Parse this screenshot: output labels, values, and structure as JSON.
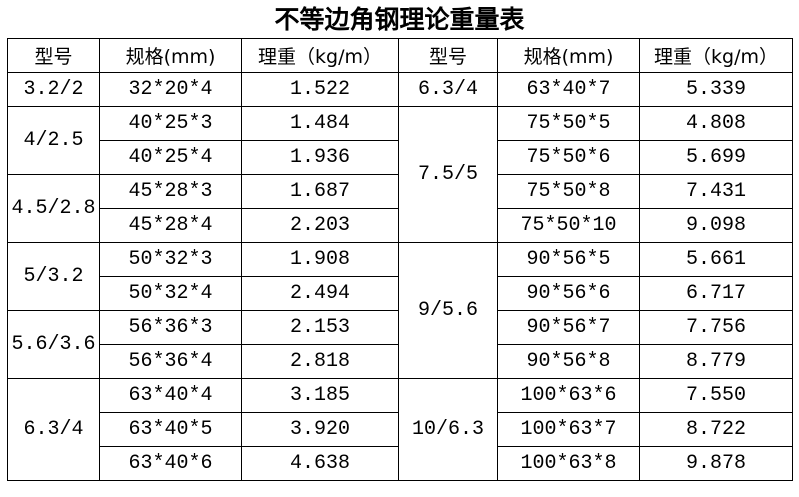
{
  "header": {
    "title": "不等边角钢理论重量表"
  },
  "table": {
    "columns": [
      "型号",
      "规格(mm)",
      "理重（kg/m）",
      "型号",
      "规格(mm)",
      "理重（kg/m）"
    ],
    "left": [
      {
        "type": "3.2/2",
        "rows": [
          [
            "32*20*4",
            "1.522"
          ]
        ]
      },
      {
        "type": "4/2.5",
        "rows": [
          [
            "40*25*3",
            "1.484"
          ],
          [
            "40*25*4",
            "1.936"
          ]
        ]
      },
      {
        "type": "4.5/2.8",
        "rows": [
          [
            "45*28*3",
            "1.687"
          ],
          [
            "45*28*4",
            "2.203"
          ]
        ]
      },
      {
        "type": "5/3.2",
        "rows": [
          [
            "50*32*3",
            "1.908"
          ],
          [
            "50*32*4",
            "2.494"
          ]
        ]
      },
      {
        "type": "5.6/3.6",
        "rows": [
          [
            "56*36*3",
            "2.153"
          ],
          [
            "56*36*4",
            "2.818"
          ]
        ]
      },
      {
        "type": "6.3/4",
        "rows": [
          [
            "63*40*4",
            "3.185"
          ],
          [
            "63*40*5",
            "3.920"
          ],
          [
            "63*40*6",
            "4.638"
          ]
        ]
      }
    ],
    "right": [
      {
        "type": "6.3/4",
        "rows": [
          [
            "63*40*7",
            "5.339"
          ]
        ]
      },
      {
        "type": "7.5/5",
        "rows": [
          [
            "75*50*5",
            "4.808"
          ],
          [
            "75*50*6",
            "5.699"
          ],
          [
            "75*50*8",
            "7.431"
          ],
          [
            "75*50*10",
            "9.098"
          ]
        ]
      },
      {
        "type": "9/5.6",
        "rows": [
          [
            "90*56*5",
            "5.661"
          ],
          [
            "90*56*6",
            "6.717"
          ],
          [
            "90*56*7",
            "7.756"
          ],
          [
            "90*56*8",
            "8.779"
          ]
        ]
      },
      {
        "type": "10/6.3",
        "rows": [
          [
            "100*63*6",
            "7.550"
          ],
          [
            "100*63*7",
            "8.722"
          ],
          [
            "100*63*8",
            "9.878"
          ]
        ]
      }
    ]
  }
}
